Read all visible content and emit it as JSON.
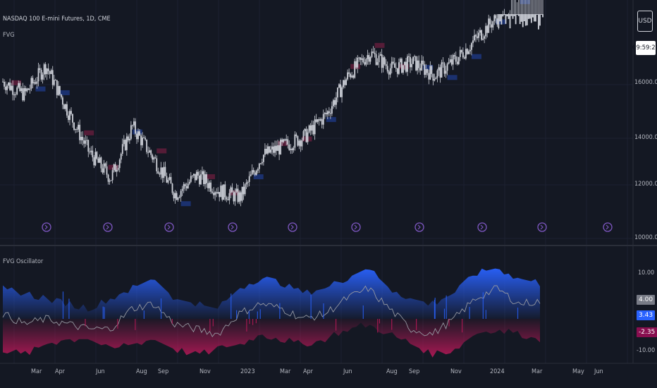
{
  "header": {
    "symbol_title": "NASDAQ 100 E-mini Futures, 1D, CME",
    "indicator_top": "FVG",
    "indicator_bottom": "FVG Oscillator"
  },
  "price_axis": {
    "currency_button": "USD",
    "clock": "09:59:21",
    "ticks": [
      "16000.00",
      "14000.00",
      "12000.00",
      "10000.00"
    ]
  },
  "osc_axis": {
    "ticks": [
      "10.00",
      "-10.00"
    ],
    "badges": [
      {
        "label": "4.00",
        "bg": "#787b86",
        "fg": "#ffffff"
      },
      {
        "label": "3.43",
        "bg": "#2962ff",
        "fg": "#ffffff"
      },
      {
        "label": "-2.35",
        "bg": "#880e4f",
        "fg": "#ffffff"
      }
    ]
  },
  "time_axis": {
    "labels": [
      "Mar",
      "Apr",
      "Jun",
      "Aug",
      "Sep",
      "Nov",
      "2023",
      "Mar",
      "Apr",
      "Jun",
      "Aug",
      "Sep",
      "Nov",
      "2024",
      "Mar",
      "May",
      "Jun"
    ]
  },
  "colors": {
    "background": "#141823",
    "candle": "#d1d4dc",
    "bull_box": "#1e3a8a",
    "bear_box": "#6b1d3f",
    "osc_blue": "#2962ff",
    "osc_red": "#c2185b",
    "osc_line": "#9598a1",
    "marker": "#7e57c2"
  },
  "chart_data": [
    {
      "type": "candlestick",
      "title": "NASDAQ 100 E-mini Futures, 1D, CME",
      "ylim": [
        10000,
        16800
      ],
      "x": [
        "2022-02",
        "2022-03",
        "2022-04",
        "2022-05",
        "2022-06",
        "2022-07",
        "2022-08",
        "2022-09",
        "2022-10",
        "2022-11",
        "2022-12",
        "2023-01",
        "2023-02",
        "2023-03",
        "2023-04",
        "2023-05",
        "2023-06",
        "2023-07",
        "2023-08",
        "2023-09",
        "2023-10",
        "2023-11",
        "2023-12",
        "2024-01",
        "2024-02",
        "2024-03"
      ],
      "close": [
        14700,
        14300,
        15200,
        13800,
        12500,
        11700,
        13300,
        12300,
        11200,
        11800,
        11300,
        11100,
        12400,
        12700,
        13000,
        13700,
        14900,
        15600,
        15100,
        15300,
        14900,
        15400,
        16100,
        16800,
        17700,
        18200
      ]
    },
    {
      "type": "area",
      "title": "FVG Oscillator",
      "ylim": [
        -10,
        10
      ],
      "x": [
        "2022-02",
        "2022-03",
        "2022-04",
        "2022-05",
        "2022-06",
        "2022-07",
        "2022-08",
        "2022-09",
        "2022-10",
        "2022-11",
        "2022-12",
        "2023-01",
        "2023-02",
        "2023-03",
        "2023-04",
        "2023-05",
        "2023-06",
        "2023-07",
        "2023-08",
        "2023-09",
        "2023-10",
        "2023-11",
        "2023-12",
        "2024-01",
        "2024-02",
        "2024-03"
      ],
      "series": [
        {
          "values": [
            6,
            5,
            4,
            3,
            2,
            4,
            6,
            8,
            4,
            3,
            2,
            6,
            8,
            7,
            5,
            6,
            8,
            10,
            6,
            4,
            3,
            5,
            9,
            10,
            8,
            7
          ]
        },
        {
          "values": [
            -6,
            -7,
            -5,
            -4,
            -4,
            -6,
            -5,
            -4,
            -6,
            -7,
            -6,
            -5,
            -3,
            -4,
            -5,
            -4,
            -2,
            -1,
            -3,
            -5,
            -7,
            -6,
            -3,
            -2,
            -3,
            -4
          ]
        },
        {
          "values": [
            1,
            -1,
            0,
            -1,
            -2,
            -2,
            2,
            3,
            -1,
            -2,
            -3,
            1,
            3,
            2,
            0,
            1,
            4,
            6,
            2,
            -2,
            -3,
            0,
            4,
            6,
            3,
            3.43
          ]
        }
      ]
    }
  ]
}
